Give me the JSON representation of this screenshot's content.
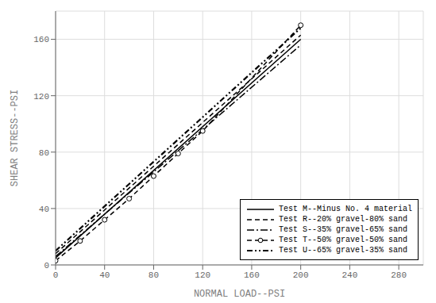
{
  "chart_data": {
    "type": "line",
    "xlabel": "NORMAL LOAD--PSI",
    "ylabel": "SHEAR STRESS--PSI",
    "xlim": [
      0,
      300
    ],
    "ylim": [
      0,
      180
    ],
    "xticks": [
      0,
      40,
      80,
      120,
      160,
      200,
      240,
      280
    ],
    "yticks": [
      0,
      40,
      80,
      120,
      160
    ],
    "grid": true,
    "legend": "lower right",
    "series": [
      {
        "name": "Test M--Minus No. 4 material",
        "color": "#000000",
        "line_style": "solid",
        "x": [
          0,
          200
        ],
        "values": [
          5,
          160
        ]
      },
      {
        "name": "Test R--20% gravel-80% sand",
        "color": "#000000",
        "line_style": "dashed",
        "x": [
          0,
          200
        ],
        "values": [
          8,
          163
        ]
      },
      {
        "name": "Test S--35% gravel-65% sand",
        "color": "#000000",
        "line_style": "dashdot",
        "x": [
          0,
          200
        ],
        "values": [
          6,
          156
        ]
      },
      {
        "name": "Test T--50% gravel-50% sand",
        "color": "#000000",
        "line_style": "dashed",
        "marker": "o",
        "x": [
          0,
          20,
          40,
          60,
          80,
          100,
          120,
          200
        ],
        "values": [
          3,
          17,
          32,
          47,
          63,
          79,
          95,
          170
        ]
      },
      {
        "name": "Test U--65% gravel-35% sand",
        "color": "#000000",
        "line_style": "dashdotdot",
        "x": [
          0,
          200
        ],
        "values": [
          10,
          168
        ]
      }
    ]
  }
}
